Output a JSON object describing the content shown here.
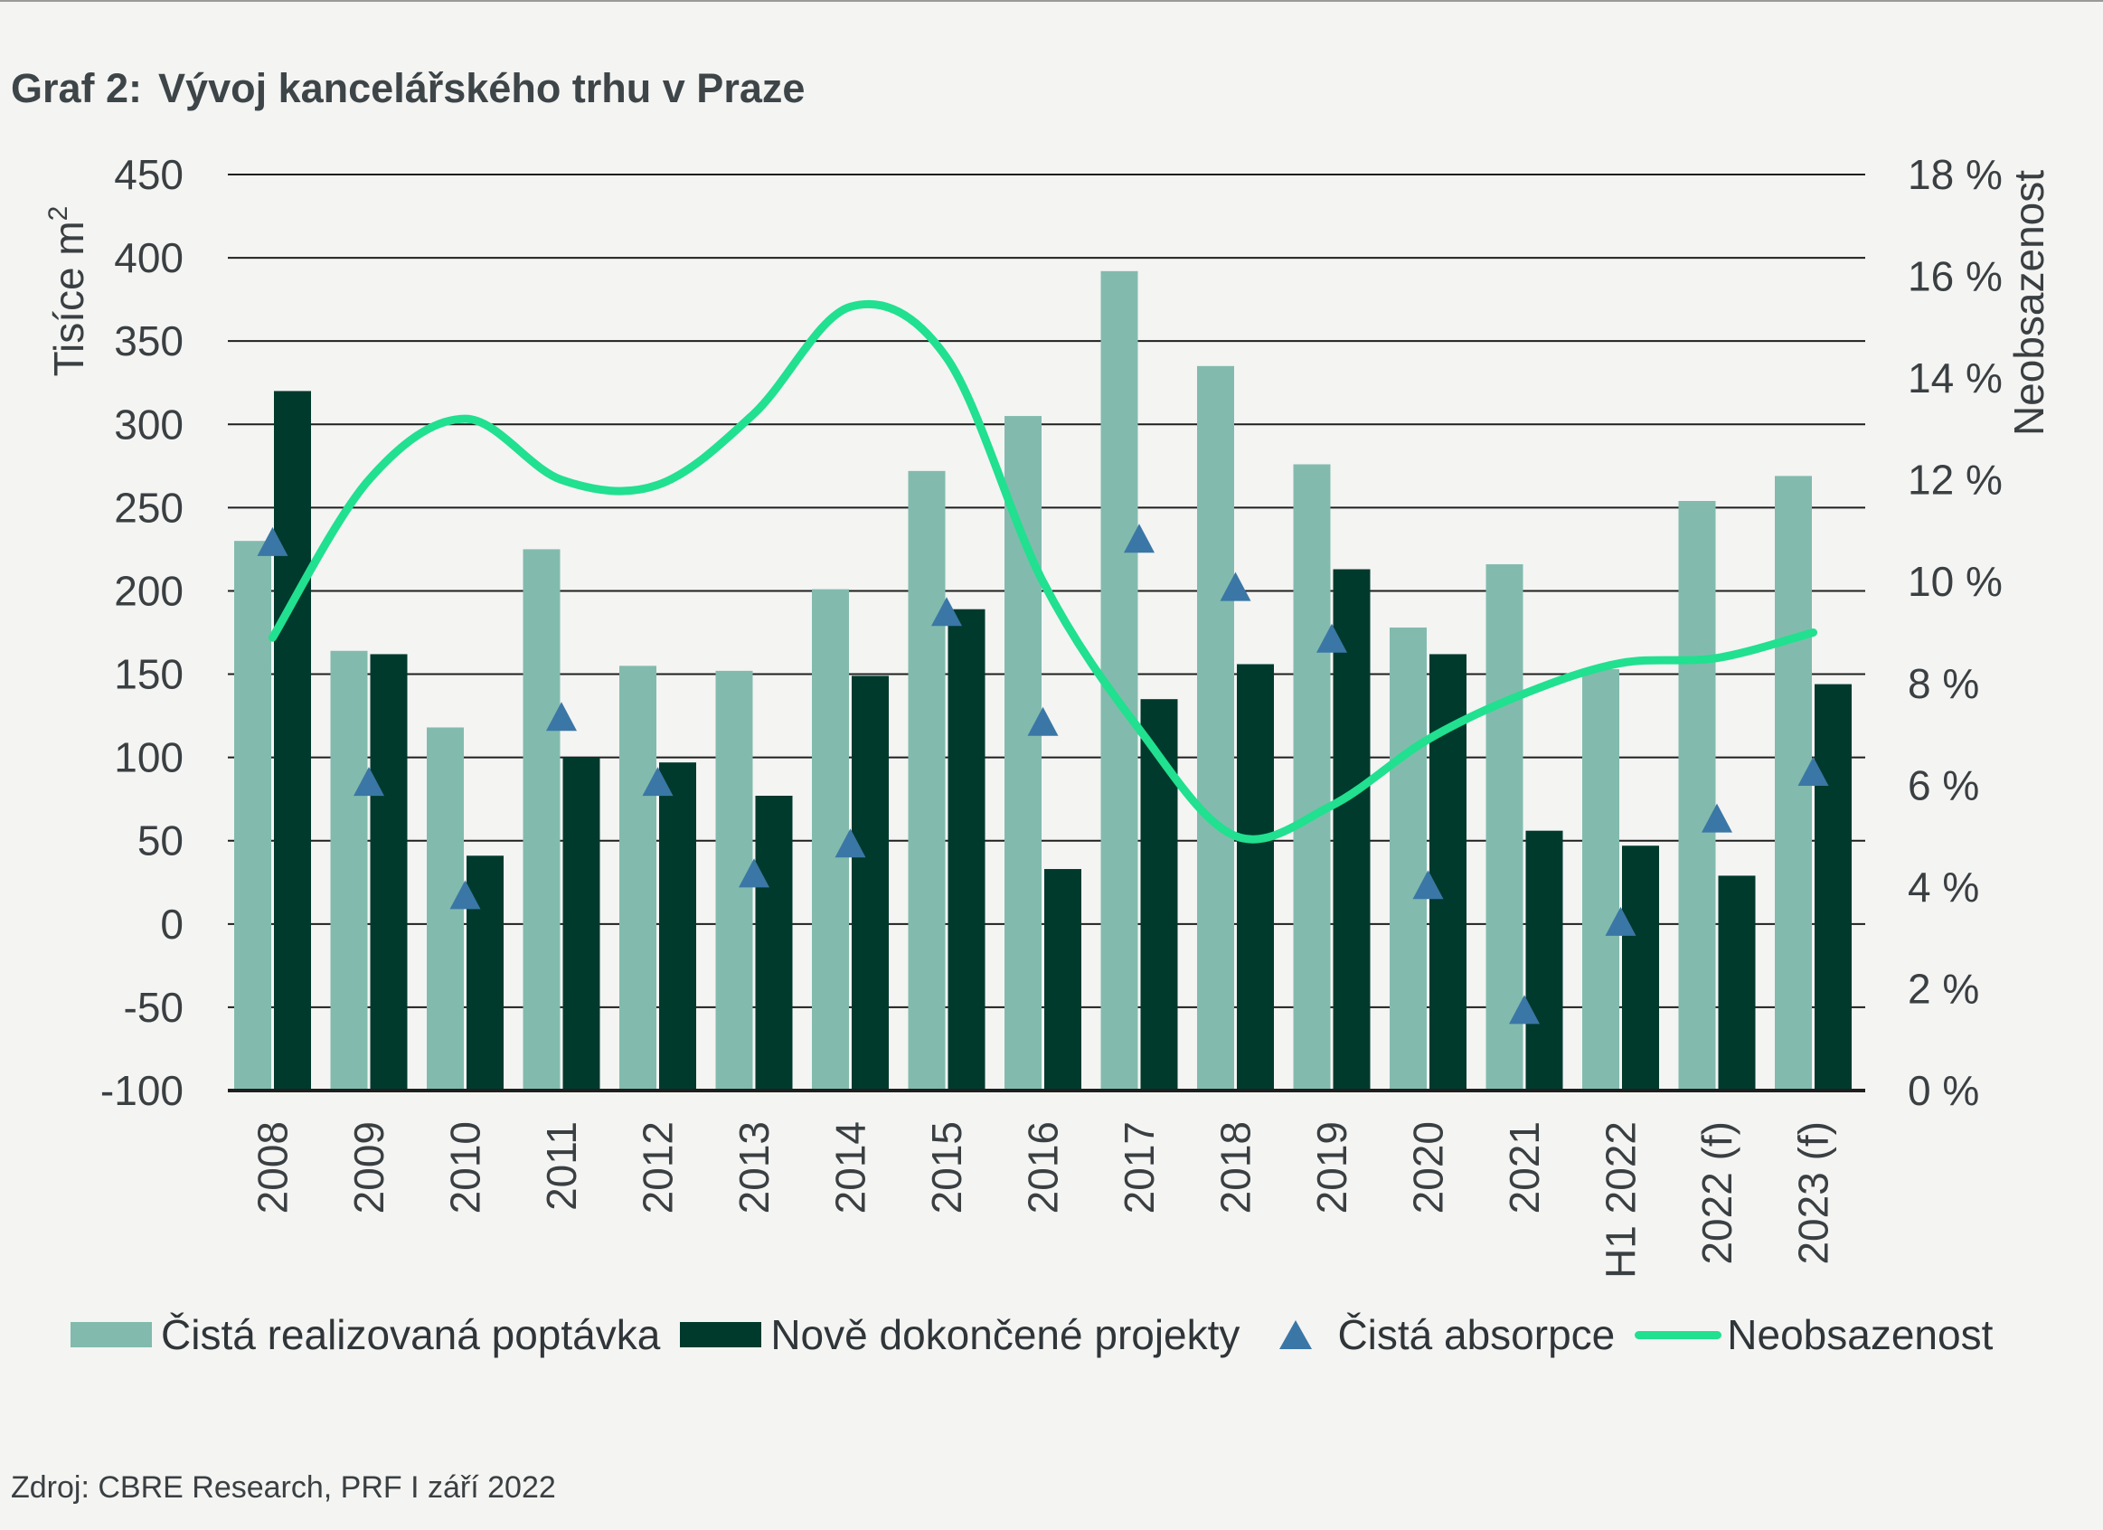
{
  "title_label": "Graf 2:",
  "title_text": "Vývoj kancelářského trhu v Praze",
  "source": "Zdroj: CBRE Research, PRF I září 2022",
  "colors": {
    "demand": "#82bbad",
    "completions": "#003a2d",
    "absorption": "#3a77a6",
    "vacancy": "#21e08f",
    "grid": "#1f1f1f",
    "text": "#3a3f42"
  },
  "chart_data": {
    "type": "bar",
    "categories": [
      "2008",
      "2009",
      "2010",
      "2011",
      "2012",
      "2013",
      "2014",
      "2015",
      "2016",
      "2017",
      "2018",
      "2019",
      "2020",
      "2021",
      "H1 2022",
      "2022 (f)",
      "2023 (f)"
    ],
    "ylabel_left": "Tisíce m",
    "ylabel_left_sup": "2",
    "ylabel_right": "Neobsazenost",
    "ylim_left": [
      -100,
      450
    ],
    "ylim_right": [
      0,
      18
    ],
    "y_ticks_left": [
      "450",
      "400",
      "350",
      "300",
      "250",
      "200",
      "150",
      "100",
      "50",
      "0",
      "-50",
      "-100"
    ],
    "y_ticks_right": [
      "18 %",
      "16 %",
      "14 %",
      "12 %",
      "10 %",
      "8 %",
      "6 %",
      "4 %",
      "2 %",
      "0 %"
    ],
    "grid": "horizontal",
    "legend_position": "bottom",
    "series": [
      {
        "name": "Čistá realizovaná poptávka",
        "kind": "bar",
        "axis": "left",
        "values": [
          230,
          164,
          118,
          225,
          155,
          152,
          201,
          272,
          305,
          392,
          335,
          276,
          178,
          216,
          153,
          254,
          269
        ]
      },
      {
        "name": "Nově dokončené projekty",
        "kind": "bar",
        "axis": "left",
        "values": [
          320,
          162,
          41,
          100,
          97,
          77,
          149,
          189,
          33,
          135,
          156,
          213,
          162,
          56,
          47,
          29,
          144
        ]
      },
      {
        "name": "Čistá absorpce",
        "kind": "marker",
        "axis": "left",
        "values": [
          228,
          84,
          16,
          123,
          84,
          29,
          47,
          186,
          120,
          230,
          201,
          170,
          22,
          -53,
          0,
          62,
          90
        ]
      },
      {
        "name": "Neobsazenost",
        "kind": "line",
        "axis": "right",
        "values": [
          8.9,
          12.0,
          13.2,
          12.0,
          11.9,
          13.3,
          15.4,
          14.4,
          10.0,
          7.1,
          5.0,
          5.6,
          6.9,
          7.8,
          8.4,
          8.5,
          9.0
        ]
      }
    ]
  }
}
